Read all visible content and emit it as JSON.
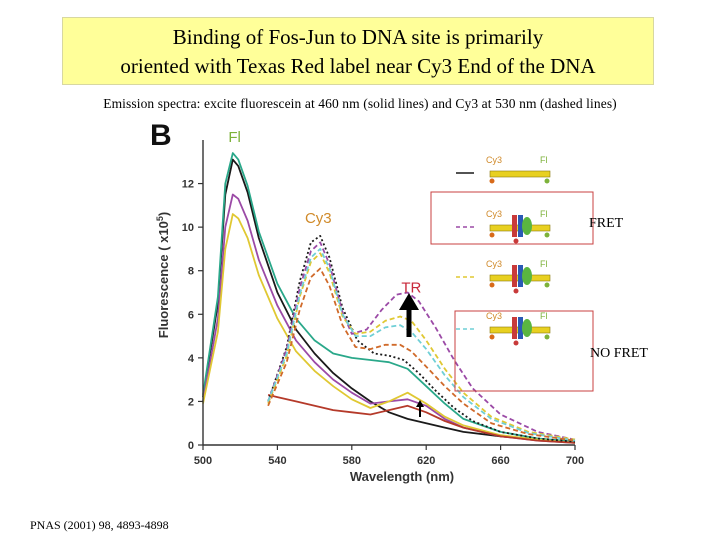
{
  "slide": {
    "title_line1": "Binding of Fos-Jun to DNA site is primarily",
    "title_line2": "oriented with Texas Red label near Cy3 End of the DNA",
    "subtitle": "Emission spectra:  excite fluorescein at 460 nm (solid lines) and Cy3 at 530 nm (dashed lines)",
    "fret_label": "FRET",
    "nofret_label": "NO FRET",
    "citation": "PNAS (2001) 98, 4893-4898"
  },
  "chart_data": {
    "type": "line",
    "panel_label": "B",
    "xlabel": "Wavelength    (nm)",
    "ylabel": "Fluorescence    ( x10",
    "ylabel_exp": "5",
    "ylabel_close": ")",
    "xlim": [
      500,
      700
    ],
    "ylim": [
      0,
      14
    ],
    "xticks": [
      "500",
      "540",
      "580",
      "620",
      "660",
      "700"
    ],
    "yticks": [
      "0",
      "2",
      "4",
      "6",
      "8",
      "10",
      "12"
    ],
    "peak_labels": [
      {
        "text": "Fl",
        "color": "#7db23a",
        "x": 517,
        "y": 13.9
      },
      {
        "text": "Cy3",
        "color": "#d08a2a",
        "x": 562,
        "y": 10.2
      },
      {
        "text": "TR",
        "color": "#c8283a",
        "x": 612,
        "y": 7.0
      }
    ],
    "legend_labels": {
      "cy3": "Cy3",
      "fl": "Fl"
    },
    "series": [
      {
        "style": "solid",
        "color": "#1a1a1a",
        "points": [
          [
            500,
            2.2
          ],
          [
            508,
            6.5
          ],
          [
            512,
            11.5
          ],
          [
            516,
            13.1
          ],
          [
            519,
            12.8
          ],
          [
            524,
            11.6
          ],
          [
            530,
            9.5
          ],
          [
            540,
            7.0
          ],
          [
            550,
            5.3
          ],
          [
            560,
            4.2
          ],
          [
            570,
            3.3
          ],
          [
            580,
            2.6
          ],
          [
            590,
            2.0
          ],
          [
            600,
            1.5
          ],
          [
            610,
            1.2
          ],
          [
            620,
            1.0
          ],
          [
            630,
            0.8
          ],
          [
            640,
            0.6
          ],
          [
            660,
            0.4
          ],
          [
            680,
            0.25
          ],
          [
            700,
            0.15
          ]
        ]
      },
      {
        "style": "solid",
        "color": "#2aa88a",
        "points": [
          [
            500,
            2.3
          ],
          [
            508,
            6.8
          ],
          [
            512,
            12.0
          ],
          [
            516,
            13.4
          ],
          [
            519,
            13.1
          ],
          [
            524,
            11.9
          ],
          [
            530,
            9.8
          ],
          [
            540,
            7.4
          ],
          [
            550,
            5.8
          ],
          [
            560,
            4.8
          ],
          [
            570,
            4.2
          ],
          [
            580,
            4.0
          ],
          [
            590,
            3.9
          ],
          [
            600,
            3.8
          ],
          [
            610,
            3.5
          ],
          [
            620,
            2.7
          ],
          [
            630,
            1.9
          ],
          [
            640,
            1.2
          ],
          [
            660,
            0.6
          ],
          [
            680,
            0.3
          ],
          [
            700,
            0.15
          ]
        ]
      },
      {
        "style": "solid",
        "color": "#9b4aa6",
        "points": [
          [
            500,
            2.0
          ],
          [
            508,
            5.8
          ],
          [
            512,
            10.0
          ],
          [
            516,
            11.5
          ],
          [
            519,
            11.3
          ],
          [
            524,
            10.3
          ],
          [
            530,
            8.5
          ],
          [
            540,
            6.4
          ],
          [
            550,
            4.8
          ],
          [
            560,
            3.8
          ],
          [
            570,
            3.0
          ],
          [
            580,
            2.4
          ],
          [
            590,
            1.9
          ],
          [
            600,
            2.0
          ],
          [
            610,
            2.1
          ],
          [
            620,
            1.8
          ],
          [
            630,
            1.2
          ],
          [
            640,
            0.8
          ],
          [
            660,
            0.4
          ],
          [
            680,
            0.2
          ],
          [
            700,
            0.1
          ]
        ]
      },
      {
        "style": "solid",
        "color": "#e0c832",
        "points": [
          [
            500,
            1.9
          ],
          [
            508,
            5.2
          ],
          [
            512,
            9.0
          ],
          [
            516,
            10.6
          ],
          [
            519,
            10.4
          ],
          [
            524,
            9.5
          ],
          [
            530,
            7.8
          ],
          [
            540,
            5.8
          ],
          [
            550,
            4.3
          ],
          [
            560,
            3.4
          ],
          [
            570,
            2.7
          ],
          [
            580,
            2.1
          ],
          [
            590,
            1.7
          ],
          [
            600,
            2.0
          ],
          [
            610,
            2.4
          ],
          [
            620,
            1.9
          ],
          [
            630,
            1.3
          ],
          [
            640,
            0.9
          ],
          [
            660,
            0.45
          ],
          [
            680,
            0.25
          ],
          [
            700,
            0.1
          ]
        ]
      },
      {
        "style": "solid",
        "color": "#b53a2a",
        "points": [
          [
            535,
            2.3
          ],
          [
            540,
            2.2
          ],
          [
            550,
            2.0
          ],
          [
            560,
            1.8
          ],
          [
            570,
            1.6
          ],
          [
            580,
            1.5
          ],
          [
            590,
            1.4
          ],
          [
            600,
            1.6
          ],
          [
            610,
            1.8
          ],
          [
            620,
            1.5
          ],
          [
            630,
            1.1
          ],
          [
            640,
            0.8
          ],
          [
            660,
            0.4
          ],
          [
            680,
            0.2
          ],
          [
            700,
            0.1
          ]
        ]
      },
      {
        "style": "dotted",
        "color": "#1a1a1a",
        "points": [
          [
            535,
            2.0
          ],
          [
            545,
            4.5
          ],
          [
            552,
            7.5
          ],
          [
            558,
            9.3
          ],
          [
            563,
            9.6
          ],
          [
            568,
            8.6
          ],
          [
            575,
            6.3
          ],
          [
            583,
            4.8
          ],
          [
            592,
            4.2
          ],
          [
            600,
            4.1
          ],
          [
            608,
            3.9
          ],
          [
            616,
            3.3
          ],
          [
            625,
            2.5
          ],
          [
            635,
            1.7
          ],
          [
            645,
            1.1
          ],
          [
            660,
            0.6
          ],
          [
            680,
            0.3
          ],
          [
            700,
            0.15
          ]
        ]
      },
      {
        "style": "dashed",
        "color": "#9b4aa6",
        "points": [
          [
            535,
            2.0
          ],
          [
            545,
            4.4
          ],
          [
            552,
            7.2
          ],
          [
            558,
            8.9
          ],
          [
            563,
            9.3
          ],
          [
            568,
            8.3
          ],
          [
            575,
            6.1
          ],
          [
            580,
            5.1
          ],
          [
            588,
            5.3
          ],
          [
            596,
            6.2
          ],
          [
            604,
            6.9
          ],
          [
            610,
            7.0
          ],
          [
            616,
            6.6
          ],
          [
            625,
            5.4
          ],
          [
            635,
            3.9
          ],
          [
            645,
            2.6
          ],
          [
            660,
            1.4
          ],
          [
            680,
            0.6
          ],
          [
            700,
            0.25
          ]
        ]
      },
      {
        "style": "dashed",
        "color": "#e0c832",
        "points": [
          [
            535,
            1.9
          ],
          [
            545,
            4.1
          ],
          [
            552,
            6.8
          ],
          [
            558,
            8.4
          ],
          [
            563,
            8.8
          ],
          [
            568,
            7.9
          ],
          [
            575,
            5.9
          ],
          [
            582,
            5.1
          ],
          [
            590,
            5.2
          ],
          [
            598,
            5.7
          ],
          [
            606,
            5.9
          ],
          [
            612,
            5.7
          ],
          [
            620,
            4.8
          ],
          [
            630,
            3.5
          ],
          [
            640,
            2.4
          ],
          [
            655,
            1.3
          ],
          [
            675,
            0.6
          ],
          [
            700,
            0.25
          ]
        ]
      },
      {
        "style": "dashed",
        "color": "#6fcfd6",
        "points": [
          [
            535,
            2.0
          ],
          [
            545,
            4.2
          ],
          [
            552,
            6.9
          ],
          [
            558,
            8.6
          ],
          [
            563,
            9.0
          ],
          [
            568,
            8.1
          ],
          [
            575,
            6.0
          ],
          [
            582,
            5.0
          ],
          [
            590,
            5.0
          ],
          [
            598,
            5.4
          ],
          [
            606,
            5.5
          ],
          [
            612,
            5.2
          ],
          [
            620,
            4.4
          ],
          [
            630,
            3.2
          ],
          [
            640,
            2.2
          ],
          [
            655,
            1.2
          ],
          [
            675,
            0.55
          ],
          [
            700,
            0.2
          ]
        ]
      },
      {
        "style": "dashed",
        "color": "#d06a2a",
        "points": [
          [
            535,
            1.8
          ],
          [
            545,
            3.8
          ],
          [
            552,
            6.2
          ],
          [
            558,
            7.7
          ],
          [
            563,
            8.1
          ],
          [
            568,
            7.3
          ],
          [
            575,
            5.5
          ],
          [
            582,
            4.5
          ],
          [
            590,
            4.4
          ],
          [
            598,
            4.6
          ],
          [
            606,
            4.6
          ],
          [
            612,
            4.3
          ],
          [
            620,
            3.6
          ],
          [
            630,
            2.7
          ],
          [
            640,
            1.9
          ],
          [
            655,
            1.0
          ],
          [
            675,
            0.5
          ],
          [
            700,
            0.2
          ]
        ]
      }
    ]
  }
}
